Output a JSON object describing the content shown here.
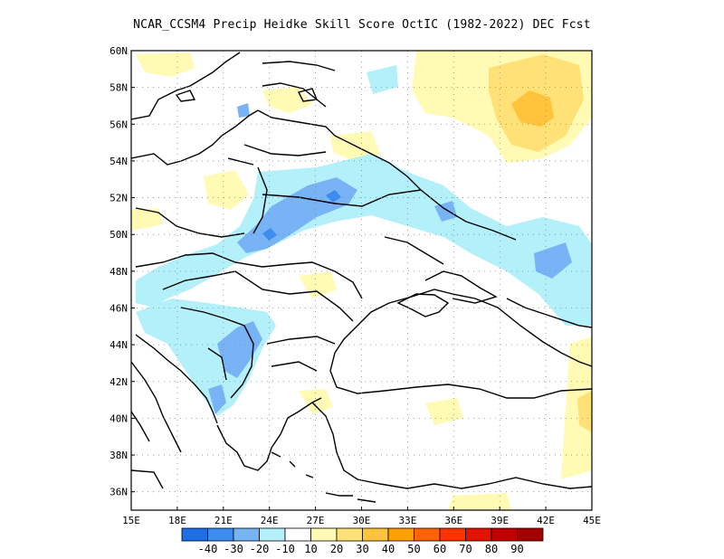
{
  "title": "NCAR_CCSM4 Precip Heidke Skill Score OctIC (1982-2022) DEC Fcst",
  "map": {
    "lon_range": [
      15,
      45
    ],
    "lat_range": [
      35,
      60
    ],
    "x_ticks": [
      "15E",
      "18E",
      "21E",
      "24E",
      "27E",
      "30E",
      "33E",
      "36E",
      "39E",
      "42E",
      "45E"
    ],
    "y_ticks": [
      "60N",
      "58N",
      "56N",
      "54N",
      "52N",
      "50N",
      "48N",
      "46N",
      "44N",
      "42N",
      "40N",
      "38N",
      "36N"
    ],
    "grid": "dotted"
  },
  "colorbar": {
    "labels": [
      "-40",
      "-30",
      "-20",
      "-10",
      "10",
      "20",
      "30",
      "40",
      "50",
      "60",
      "70",
      "80",
      "90"
    ],
    "colors": [
      "#1e6ee6",
      "#3c8cf0",
      "#78b4f5",
      "#b4f0fa",
      "#ffffff",
      "#fffab4",
      "#ffe178",
      "#ffc33c",
      "#ffa000",
      "#ff6400",
      "#ff3200",
      "#e11400",
      "#c00000",
      "#a50000"
    ]
  },
  "palette": {
    "pos_light": "#fffab4",
    "pos_mid": "#ffe178",
    "pos_strong": "#ffc33c",
    "neg_light": "#b4f0fa",
    "neg_mid": "#78b4f5",
    "neg_strong": "#3c8cf0"
  }
}
